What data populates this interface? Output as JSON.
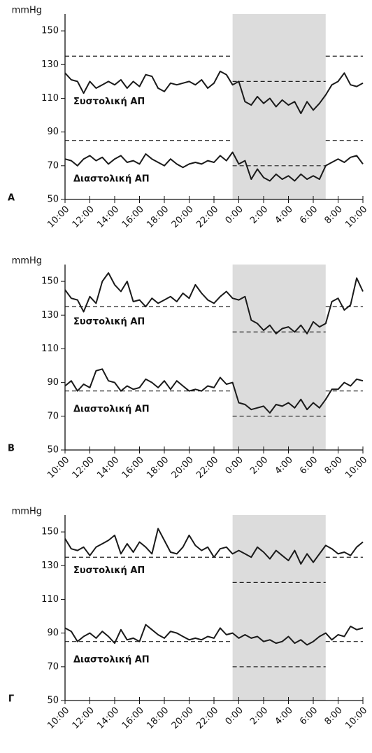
{
  "chart_data": [
    {
      "type": "line",
      "panel": "A",
      "ylabel": "mmHg",
      "x": [
        10,
        10.5,
        11,
        11.5,
        12,
        12.5,
        13,
        13.5,
        14,
        14.5,
        15,
        15.5,
        16,
        16.5,
        17,
        17.5,
        18,
        18.5,
        19,
        19.5,
        20,
        20.5,
        21,
        21.5,
        22,
        22.5,
        23,
        23.5,
        24,
        24.5,
        25,
        25.5,
        26,
        26.5,
        27,
        27.5,
        28,
        28.5,
        29,
        29.5,
        30,
        30.5,
        31,
        31.5,
        32,
        32.5,
        33,
        33.5,
        34
      ],
      "series": [
        {
          "name": "Συστολική ΑΠ",
          "color": "#1a1a1a",
          "values": [
            125,
            121,
            120,
            113,
            120,
            116,
            118,
            120,
            118,
            121,
            116,
            120,
            117,
            124,
            123,
            116,
            114,
            119,
            118,
            119,
            120,
            118,
            121,
            116,
            119,
            126,
            124,
            118,
            120,
            108,
            106,
            111,
            107,
            110,
            105,
            109,
            106,
            108,
            101,
            108,
            103,
            107,
            112,
            118,
            120,
            125,
            118,
            117,
            119
          ]
        },
        {
          "name": "Διαστολική ΑΠ",
          "color": "#1a1a1a",
          "values": [
            74,
            73,
            70,
            74,
            76,
            73,
            75,
            71,
            74,
            76,
            72,
            73,
            71,
            77,
            74,
            72,
            70,
            74,
            71,
            69,
            71,
            72,
            71,
            73,
            72,
            76,
            73,
            78,
            71,
            73,
            62,
            68,
            63,
            61,
            65,
            62,
            64,
            61,
            65,
            62,
            64,
            62,
            70,
            72,
            74,
            72,
            75,
            76,
            71
          ]
        }
      ],
      "thresholds": {
        "day": [
          135,
          85
        ],
        "night": [
          120,
          70
        ]
      },
      "night_period": [
        23.5,
        31
      ],
      "night_color": "#dcdcdc",
      "xlim": [
        10,
        34
      ],
      "ylim": [
        50,
        160
      ],
      "xticks": [
        {
          "value": 10,
          "label": "10:00"
        },
        {
          "value": 12,
          "label": "12:00"
        },
        {
          "value": 14,
          "label": "14:00"
        },
        {
          "value": 16,
          "label": "16:00"
        },
        {
          "value": 18,
          "label": "18:00"
        },
        {
          "value": 20,
          "label": "20:00"
        },
        {
          "value": 22,
          "label": "22:00"
        },
        {
          "value": 24,
          "label": "0:00"
        },
        {
          "value": 26,
          "label": "2:00"
        },
        {
          "value": 28,
          "label": "4:00"
        },
        {
          "value": 30,
          "label": "6:00"
        },
        {
          "value": 32,
          "label": "8:00"
        },
        {
          "value": 34,
          "label": "10:00"
        }
      ],
      "yticks": [
        50,
        70,
        90,
        110,
        130,
        150
      ]
    },
    {
      "type": "line",
      "panel": "B",
      "ylabel": "mmHg",
      "x": [
        10,
        10.5,
        11,
        11.5,
        12,
        12.5,
        13,
        13.5,
        14,
        14.5,
        15,
        15.5,
        16,
        16.5,
        17,
        17.5,
        18,
        18.5,
        19,
        19.5,
        20,
        20.5,
        21,
        21.5,
        22,
        22.5,
        23,
        23.5,
        24,
        24.5,
        25,
        25.5,
        26,
        26.5,
        27,
        27.5,
        28,
        28.5,
        29,
        29.5,
        30,
        30.5,
        31,
        31.5,
        32,
        32.5,
        33,
        33.5,
        34
      ],
      "series": [
        {
          "name": "Συστολική ΑΠ",
          "color": "#1a1a1a",
          "values": [
            145,
            140,
            139,
            132,
            141,
            137,
            150,
            155,
            148,
            144,
            150,
            138,
            139,
            135,
            140,
            137,
            139,
            141,
            138,
            143,
            140,
            148,
            143,
            139,
            137,
            141,
            144,
            140,
            139,
            141,
            127,
            125,
            121,
            124,
            119,
            122,
            123,
            120,
            124,
            119,
            126,
            123,
            125,
            138,
            140,
            133,
            136,
            152,
            144
          ]
        },
        {
          "name": "Διαστολική ΑΠ",
          "color": "#1a1a1a",
          "values": [
            88,
            91,
            85,
            89,
            87,
            97,
            98,
            91,
            90,
            85,
            88,
            86,
            87,
            92,
            90,
            87,
            91,
            86,
            91,
            88,
            85,
            86,
            85,
            88,
            87,
            93,
            89,
            90,
            78,
            77,
            74,
            75,
            76,
            72,
            77,
            76,
            78,
            75,
            80,
            74,
            78,
            75,
            80,
            86,
            86,
            90,
            88,
            92,
            91
          ]
        }
      ],
      "thresholds": {
        "day": [
          135,
          85
        ],
        "night": [
          120,
          70
        ]
      },
      "night_period": [
        23.5,
        31
      ],
      "night_color": "#dcdcdc",
      "xlim": [
        10,
        34
      ],
      "ylim": [
        50,
        160
      ],
      "xticks": [
        {
          "value": 10,
          "label": "10:00"
        },
        {
          "value": 12,
          "label": "12:00"
        },
        {
          "value": 14,
          "label": "14:00"
        },
        {
          "value": 16,
          "label": "16:00"
        },
        {
          "value": 18,
          "label": "18:00"
        },
        {
          "value": 20,
          "label": "20:00"
        },
        {
          "value": 22,
          "label": "22:00"
        },
        {
          "value": 24,
          "label": "0:00"
        },
        {
          "value": 26,
          "label": "2:00"
        },
        {
          "value": 28,
          "label": "4:00"
        },
        {
          "value": 30,
          "label": "6:00"
        },
        {
          "value": 32,
          "label": "8:00"
        },
        {
          "value": 34,
          "label": "10:00"
        }
      ],
      "yticks": [
        50,
        70,
        90,
        110,
        130,
        150
      ]
    },
    {
      "type": "line",
      "panel": "Γ",
      "ylabel": "mmHg",
      "x": [
        10,
        10.5,
        11,
        11.5,
        12,
        12.5,
        13,
        13.5,
        14,
        14.5,
        15,
        15.5,
        16,
        16.5,
        17,
        17.5,
        18,
        18.5,
        19,
        19.5,
        20,
        20.5,
        21,
        21.5,
        22,
        22.5,
        23,
        23.5,
        24,
        24.5,
        25,
        25.5,
        26,
        26.5,
        27,
        27.5,
        28,
        28.5,
        29,
        29.5,
        30,
        30.5,
        31,
        31.5,
        32,
        32.5,
        33,
        33.5,
        34
      ],
      "series": [
        {
          "name": "Συστολική ΑΠ",
          "color": "#1a1a1a",
          "values": [
            146,
            140,
            139,
            141,
            136,
            141,
            143,
            145,
            148,
            137,
            143,
            138,
            144,
            141,
            137,
            152,
            145,
            138,
            137,
            141,
            148,
            142,
            139,
            141,
            135,
            140,
            141,
            137,
            139,
            137,
            135,
            141,
            138,
            134,
            139,
            136,
            133,
            139,
            131,
            137,
            132,
            137,
            142,
            140,
            137,
            138,
            136,
            141,
            144
          ]
        },
        {
          "name": "Διαστολική ΑΠ",
          "color": "#1a1a1a",
          "values": [
            93,
            91,
            85,
            88,
            90,
            87,
            91,
            88,
            84,
            92,
            86,
            87,
            85,
            95,
            92,
            89,
            87,
            91,
            90,
            88,
            86,
            87,
            86,
            88,
            87,
            93,
            89,
            90,
            87,
            89,
            87,
            88,
            85,
            86,
            84,
            85,
            88,
            84,
            86,
            83,
            85,
            88,
            90,
            86,
            89,
            88,
            94,
            92,
            93
          ]
        }
      ],
      "thresholds": {
        "day": [
          135,
          85
        ],
        "night": [
          120,
          70
        ]
      },
      "night_period": [
        23.5,
        31
      ],
      "night_color": "#dcdcdc",
      "xlim": [
        10,
        34
      ],
      "ylim": [
        50,
        160
      ],
      "xticks": [
        {
          "value": 10,
          "label": "10:00"
        },
        {
          "value": 12,
          "label": "12:00"
        },
        {
          "value": 14,
          "label": "14:00"
        },
        {
          "value": 16,
          "label": "16:00"
        },
        {
          "value": 18,
          "label": "18:00"
        },
        {
          "value": 20,
          "label": "20:00"
        },
        {
          "value": 22,
          "label": "22:00"
        },
        {
          "value": 24,
          "label": "0:00"
        },
        {
          "value": 26,
          "label": "2:00"
        },
        {
          "value": 28,
          "label": "4:00"
        },
        {
          "value": 30,
          "label": "6:00"
        },
        {
          "value": 32,
          "label": "8:00"
        },
        {
          "value": 34,
          "label": "10:00"
        }
      ],
      "yticks": [
        50,
        70,
        90,
        110,
        130,
        150
      ]
    }
  ]
}
